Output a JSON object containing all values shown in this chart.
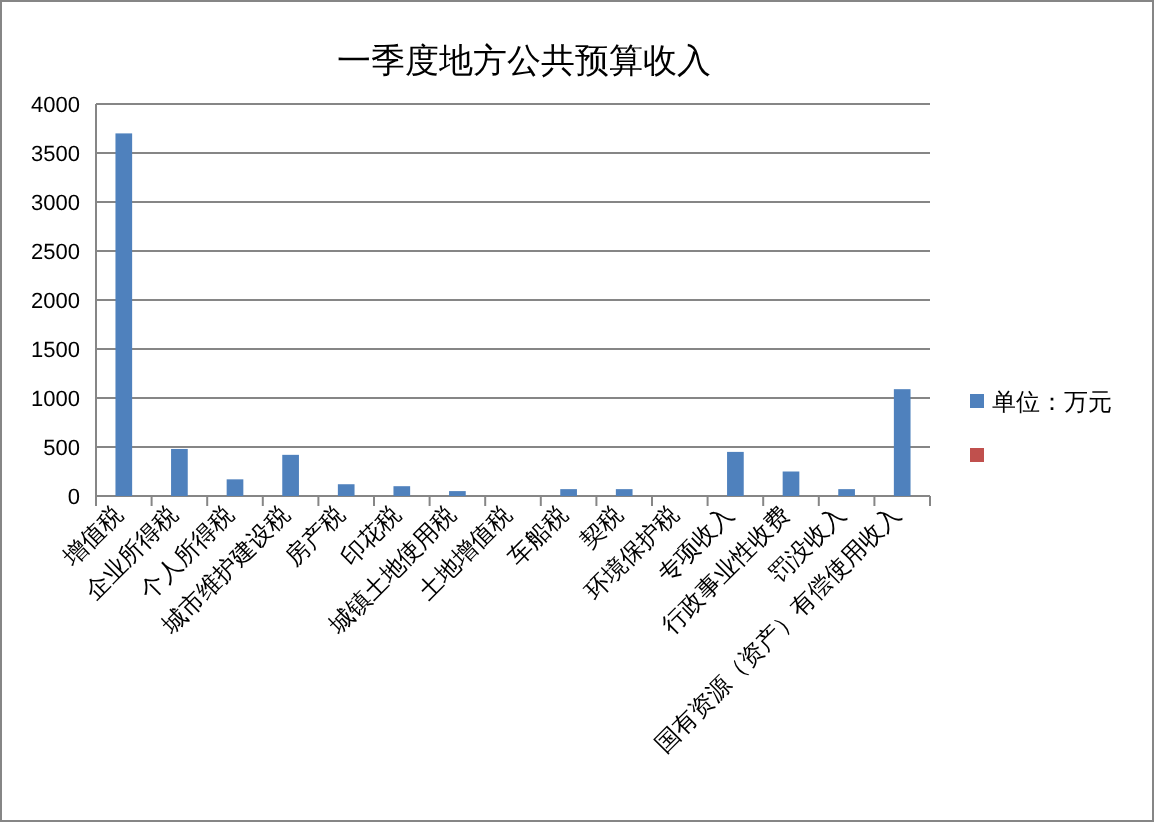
{
  "chart_data": {
    "type": "bar",
    "title": "一季度地方公共预算收入",
    "categories": [
      "增值税",
      "企业所得税",
      "个人所得税",
      "城市维护建设税",
      "房产税",
      "印花税",
      "城镇土地使用税",
      "土地增值税",
      "车船税",
      "契税",
      "环境保护税",
      "专项收入",
      "行政事业性收费",
      "罚没收入",
      "国有资源（资产）有偿使用收入"
    ],
    "series": [
      {
        "name": "单位：万元",
        "color": "#4f81bd",
        "values": [
          3700,
          480,
          170,
          420,
          120,
          100,
          50,
          0,
          70,
          70,
          0,
          450,
          250,
          70,
          1090
        ]
      },
      {
        "color": "#c0504d",
        "values": [
          null,
          null,
          null,
          null,
          null,
          null,
          null,
          null,
          null,
          null,
          null,
          null,
          null,
          null,
          null
        ]
      }
    ],
    "ylim": [
      0,
      4000
    ],
    "yticks": [
      0,
      500,
      1000,
      1500,
      2000,
      2500,
      3000,
      3500,
      4000
    ],
    "grid": "y",
    "legend": "right"
  }
}
